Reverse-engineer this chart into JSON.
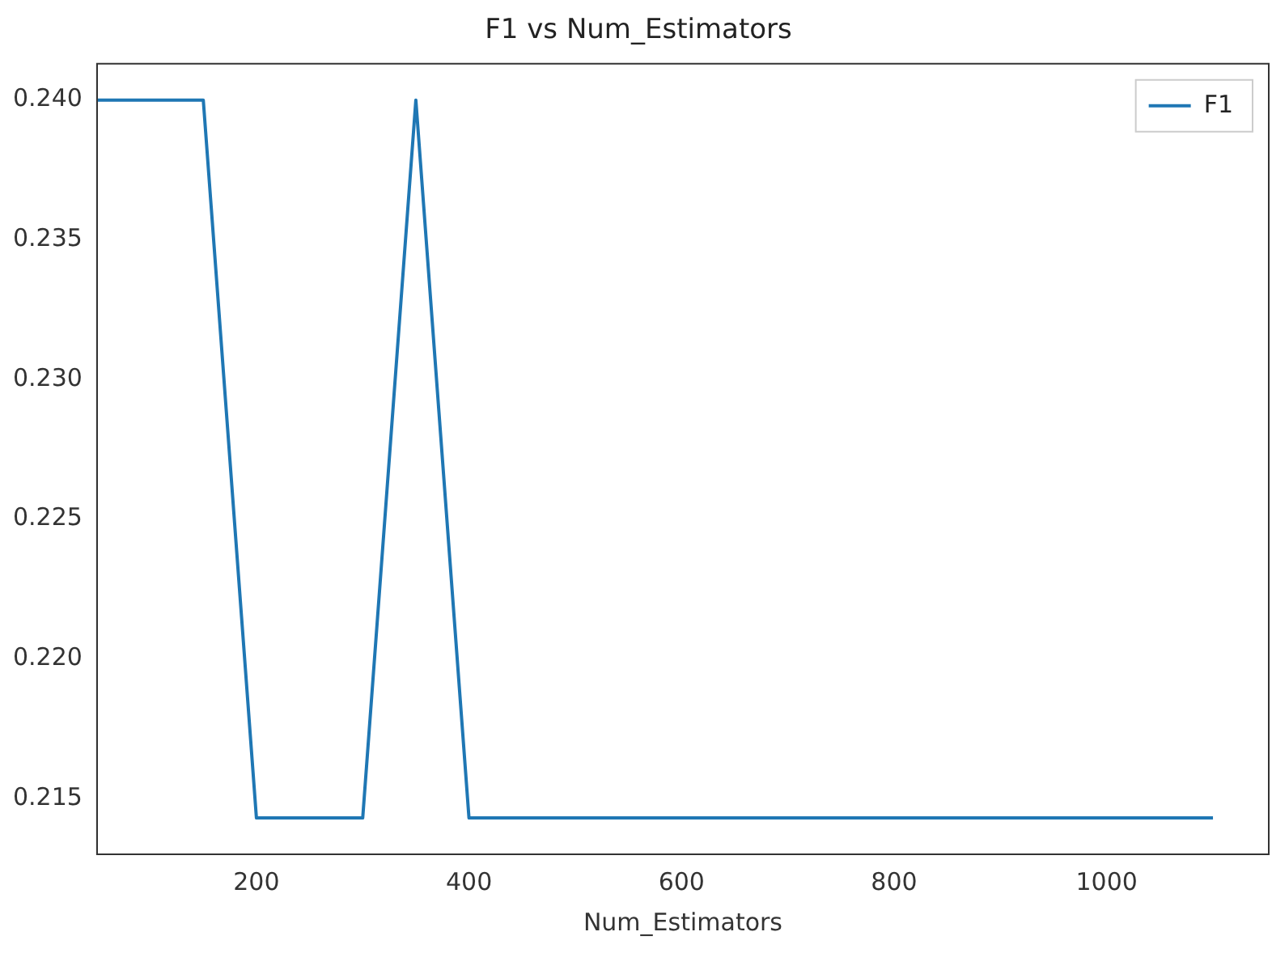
{
  "chart_data": {
    "type": "line",
    "title": "F1 vs Num_Estimators",
    "xlabel": "Num_Estimators",
    "x": [
      50,
      100,
      150,
      200,
      250,
      300,
      350,
      400,
      450,
      500,
      550,
      600,
      650,
      700,
      750,
      800,
      850,
      900,
      950,
      1000,
      1050,
      1100
    ],
    "series": [
      {
        "name": "F1",
        "color": "#1f77b4",
        "values": [
          0.24,
          0.24,
          0.24,
          0.2143,
          0.2143,
          0.2143,
          0.24,
          0.2143,
          0.2143,
          0.2143,
          0.2143,
          0.2143,
          0.2143,
          0.2143,
          0.2143,
          0.2143,
          0.2143,
          0.2143,
          0.2143,
          0.2143,
          0.2143,
          0.2143
        ]
      }
    ],
    "xlim": [
      50,
      1152.5
    ],
    "xticks": [
      200,
      400,
      600,
      800,
      1000
    ],
    "ylim": [
      0.213,
      0.2413
    ],
    "yticks": [
      {
        "value": 0.215,
        "label": "0.215"
      },
      {
        "value": 0.22,
        "label": "0.220"
      },
      {
        "value": 0.225,
        "label": "0.225"
      },
      {
        "value": 0.23,
        "label": "0.230"
      },
      {
        "value": 0.235,
        "label": "0.235"
      },
      {
        "value": 0.24,
        "label": "0.240"
      }
    ],
    "grid": false,
    "legend": "top right",
    "marker": "none",
    "line_style": "solid"
  }
}
